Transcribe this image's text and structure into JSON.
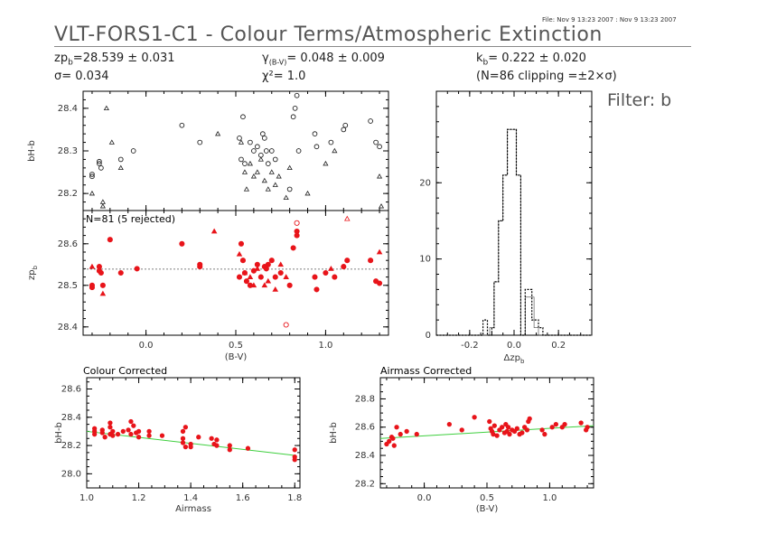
{
  "header": {
    "file_stamp": "File: Nov  9 13:23 2007 : Nov  9 13:23 2007",
    "title": "VLT-FORS1-C1 - Colour Terms/Atmospheric Extinction",
    "zp_line": "zpₐ=28.539 ± 0.031",
    "zp_text": "zp",
    "zp_sub": "b",
    "zp_val": "=28.539 ± 0.031",
    "sigma_line": "σ=  0.034",
    "gamma_sym": "γ",
    "gamma_sub": "(B-V)",
    "gamma_val": "=  0.048 ± 0.009",
    "chi_line": "χ²=   1.0",
    "k_text": "k",
    "k_sub": "b",
    "k_val": "=  0.222 ± 0.020",
    "n_line": "(N=86 clipping =±2×σ)",
    "filter": "Filter: b"
  },
  "chart_data": [
    {
      "id": "colour-top",
      "type": "scatter",
      "ylabel": "bH-b",
      "xlim": [
        -0.35,
        1.35
      ],
      "ylim": [
        28.16,
        28.44
      ],
      "yticks": [
        28.2,
        28.3,
        28.4
      ],
      "points_circle": [
        [
          -0.3,
          28.24
        ],
        [
          -0.3,
          28.245
        ],
        [
          -0.26,
          28.27
        ],
        [
          -0.26,
          28.275
        ],
        [
          -0.25,
          28.26
        ],
        [
          -0.14,
          28.28
        ],
        [
          -0.07,
          28.3
        ],
        [
          0.2,
          28.36
        ],
        [
          0.3,
          28.32
        ],
        [
          0.52,
          28.33
        ],
        [
          0.53,
          28.28
        ],
        [
          0.54,
          28.38
        ],
        [
          0.55,
          28.27
        ],
        [
          0.58,
          28.32
        ],
        [
          0.6,
          28.3
        ],
        [
          0.62,
          28.31
        ],
        [
          0.64,
          28.29
        ],
        [
          0.65,
          28.34
        ],
        [
          0.66,
          28.33
        ],
        [
          0.67,
          28.3
        ],
        [
          0.68,
          28.27
        ],
        [
          0.7,
          28.3
        ],
        [
          0.72,
          28.28
        ],
        [
          0.8,
          28.21
        ],
        [
          0.82,
          28.38
        ],
        [
          0.83,
          28.4
        ],
        [
          0.84,
          28.43
        ],
        [
          0.85,
          28.3
        ],
        [
          0.94,
          28.34
        ],
        [
          0.95,
          28.31
        ],
        [
          1.03,
          28.32
        ],
        [
          1.1,
          28.35
        ],
        [
          1.11,
          28.36
        ],
        [
          1.25,
          28.37
        ],
        [
          1.28,
          28.32
        ],
        [
          1.3,
          28.31
        ]
      ],
      "points_triangle": [
        [
          -0.3,
          28.2
        ],
        [
          -0.24,
          28.18
        ],
        [
          -0.24,
          28.17
        ],
        [
          -0.22,
          28.4
        ],
        [
          -0.19,
          28.32
        ],
        [
          -0.14,
          28.26
        ],
        [
          0.4,
          28.34
        ],
        [
          0.53,
          28.32
        ],
        [
          0.55,
          28.25
        ],
        [
          0.56,
          28.21
        ],
        [
          0.58,
          28.27
        ],
        [
          0.6,
          28.24
        ],
        [
          0.62,
          28.25
        ],
        [
          0.64,
          28.28
        ],
        [
          0.66,
          28.23
        ],
        [
          0.68,
          28.21
        ],
        [
          0.7,
          28.25
        ],
        [
          0.72,
          28.22
        ],
        [
          0.74,
          28.24
        ],
        [
          0.78,
          28.19
        ],
        [
          0.8,
          28.26
        ],
        [
          0.9,
          28.2
        ],
        [
          1.0,
          28.27
        ],
        [
          1.05,
          28.3
        ],
        [
          1.3,
          28.24
        ],
        [
          1.31,
          28.17
        ]
      ]
    },
    {
      "id": "zp-middle",
      "type": "scatter",
      "ylabel": "zp_b",
      "xlabel": "(B-V)",
      "annotation": "N=81 (5 rejected)",
      "xlim": [
        -0.35,
        1.35
      ],
      "ylim": [
        28.38,
        28.68
      ],
      "yticks": [
        28.4,
        28.5,
        28.6
      ],
      "xticks": [
        0.0,
        0.5,
        1.0
      ],
      "fit_y": 28.539,
      "points": [
        [
          -0.3,
          28.495
        ],
        [
          -0.3,
          28.5
        ],
        [
          -0.26,
          28.535
        ],
        [
          -0.26,
          28.545
        ],
        [
          -0.25,
          28.53
        ],
        [
          -0.24,
          28.5
        ],
        [
          -0.2,
          28.61
        ],
        [
          -0.14,
          28.53
        ],
        [
          -0.05,
          28.54
        ],
        [
          0.2,
          28.6
        ],
        [
          0.3,
          28.55
        ],
        [
          0.3,
          28.545
        ],
        [
          0.52,
          28.52
        ],
        [
          0.53,
          28.6
        ],
        [
          0.54,
          28.56
        ],
        [
          0.55,
          28.53
        ],
        [
          0.56,
          28.51
        ],
        [
          0.58,
          28.5
        ],
        [
          0.6,
          28.535
        ],
        [
          0.62,
          28.55
        ],
        [
          0.64,
          28.52
        ],
        [
          0.66,
          28.545
        ],
        [
          0.67,
          28.54
        ],
        [
          0.68,
          28.55
        ],
        [
          0.7,
          28.56
        ],
        [
          0.72,
          28.52
        ],
        [
          0.75,
          28.53
        ],
        [
          0.8,
          28.5
        ],
        [
          0.82,
          28.59
        ],
        [
          0.84,
          28.62
        ],
        [
          0.84,
          28.63
        ],
        [
          0.94,
          28.52
        ],
        [
          0.95,
          28.49
        ],
        [
          1.0,
          28.53
        ],
        [
          1.05,
          28.52
        ],
        [
          1.1,
          28.545
        ],
        [
          1.12,
          28.56
        ],
        [
          1.25,
          28.56
        ],
        [
          1.28,
          28.51
        ],
        [
          1.3,
          28.505
        ]
      ],
      "triangles": [
        [
          -0.3,
          28.545
        ],
        [
          -0.24,
          28.48
        ],
        [
          0.38,
          28.63
        ],
        [
          0.52,
          28.575
        ],
        [
          0.55,
          28.53
        ],
        [
          0.58,
          28.52
        ],
        [
          0.6,
          28.5
        ],
        [
          0.62,
          28.54
        ],
        [
          0.66,
          28.5
        ],
        [
          0.68,
          28.51
        ],
        [
          0.72,
          28.49
        ],
        [
          0.75,
          28.55
        ],
        [
          0.78,
          28.52
        ],
        [
          1.03,
          28.54
        ],
        [
          1.3,
          28.58
        ]
      ],
      "rejected_circle": [
        [
          0.78,
          28.405
        ],
        [
          0.84,
          28.65
        ]
      ],
      "rejected_triangle": [
        [
          1.12,
          28.66
        ]
      ]
    },
    {
      "id": "histogram",
      "type": "bar",
      "xlabel": "Δzp_b",
      "xlim": [
        -0.35,
        0.35
      ],
      "ylim": [
        0,
        32
      ],
      "yticks": [
        0,
        10,
        20
      ],
      "xticks": [
        -0.2,
        0.0,
        0.2
      ],
      "bins_solid": [
        [
          -0.35,
          0
        ],
        [
          -0.12,
          0
        ],
        [
          -0.11,
          1
        ],
        [
          -0.09,
          7
        ],
        [
          -0.07,
          15
        ],
        [
          -0.05,
          21
        ],
        [
          -0.03,
          27
        ],
        [
          -0.01,
          27
        ],
        [
          0.01,
          21
        ],
        [
          0.03,
          0
        ],
        [
          0.05,
          5
        ],
        [
          0.07,
          5
        ],
        [
          0.09,
          1
        ],
        [
          0.11,
          0
        ],
        [
          0.35,
          0
        ]
      ],
      "bins_dotted": [
        [
          -0.35,
          0
        ],
        [
          -0.14,
          0
        ],
        [
          -0.14,
          2
        ],
        [
          -0.12,
          2
        ],
        [
          -0.12,
          0
        ],
        [
          -0.1,
          0
        ],
        [
          -0.1,
          1
        ],
        [
          -0.09,
          1
        ],
        [
          -0.09,
          7
        ],
        [
          -0.07,
          7
        ],
        [
          -0.07,
          15
        ],
        [
          -0.05,
          15
        ],
        [
          -0.05,
          21
        ],
        [
          -0.03,
          21
        ],
        [
          -0.03,
          27
        ],
        [
          0.01,
          27
        ],
        [
          0.01,
          21
        ],
        [
          0.03,
          21
        ],
        [
          0.03,
          0
        ],
        [
          0.05,
          0
        ],
        [
          0.05,
          6
        ],
        [
          0.08,
          6
        ],
        [
          0.08,
          2
        ],
        [
          0.11,
          2
        ],
        [
          0.11,
          1
        ],
        [
          0.13,
          1
        ],
        [
          0.13,
          0
        ],
        [
          0.35,
          0
        ]
      ]
    },
    {
      "id": "colour-corrected",
      "type": "scatter",
      "title": "Colour Corrected",
      "xlabel": "Airmass",
      "ylabel": "bH-b",
      "xlim": [
        1.0,
        1.82
      ],
      "ylim": [
        27.9,
        28.68
      ],
      "xticks": [
        1.0,
        1.2,
        1.4,
        1.6,
        1.8
      ],
      "yticks": [
        28.0,
        28.2,
        28.4,
        28.6
      ],
      "fit_line": [
        [
          1.0,
          28.3
        ],
        [
          1.8,
          28.13
        ]
      ],
      "points": [
        [
          1.03,
          28.3
        ],
        [
          1.03,
          28.28
        ],
        [
          1.03,
          28.32
        ],
        [
          1.06,
          28.29
        ],
        [
          1.06,
          28.31
        ],
        [
          1.07,
          28.26
        ],
        [
          1.09,
          28.28
        ],
        [
          1.09,
          28.33
        ],
        [
          1.09,
          28.36
        ],
        [
          1.1,
          28.3
        ],
        [
          1.1,
          28.27
        ],
        [
          1.12,
          28.28
        ],
        [
          1.14,
          28.3
        ],
        [
          1.16,
          28.31
        ],
        [
          1.17,
          28.28
        ],
        [
          1.17,
          28.37
        ],
        [
          1.18,
          28.34
        ],
        [
          1.19,
          28.29
        ],
        [
          1.2,
          28.3
        ],
        [
          1.2,
          28.26
        ],
        [
          1.24,
          28.27
        ],
        [
          1.24,
          28.3
        ],
        [
          1.29,
          28.27
        ],
        [
          1.37,
          28.3
        ],
        [
          1.37,
          28.25
        ],
        [
          1.37,
          28.22
        ],
        [
          1.38,
          28.19
        ],
        [
          1.38,
          28.33
        ],
        [
          1.4,
          28.21
        ],
        [
          1.4,
          28.19
        ],
        [
          1.43,
          28.26
        ],
        [
          1.48,
          28.25
        ],
        [
          1.49,
          28.21
        ],
        [
          1.5,
          28.24
        ],
        [
          1.5,
          28.2
        ],
        [
          1.55,
          28.2
        ],
        [
          1.55,
          28.17
        ],
        [
          1.62,
          28.18
        ],
        [
          1.8,
          28.17
        ],
        [
          1.8,
          28.12
        ],
        [
          1.8,
          28.1
        ]
      ]
    },
    {
      "id": "airmass-corrected",
      "type": "scatter",
      "title": "Airmass Corrected",
      "xlabel": "(B-V)",
      "ylabel": "bH-b",
      "xlim": [
        -0.35,
        1.35
      ],
      "ylim": [
        28.17,
        28.95
      ],
      "xticks": [
        0.0,
        0.5,
        1.0
      ],
      "yticks": [
        28.2,
        28.4,
        28.6,
        28.8
      ],
      "fit_line": [
        [
          -0.35,
          28.52
        ],
        [
          1.35,
          28.61
        ]
      ],
      "points": [
        [
          -0.3,
          28.48
        ],
        [
          -0.28,
          28.5
        ],
        [
          -0.26,
          28.53
        ],
        [
          -0.25,
          28.52
        ],
        [
          -0.24,
          28.47
        ],
        [
          -0.22,
          28.6
        ],
        [
          -0.19,
          28.55
        ],
        [
          -0.14,
          28.57
        ],
        [
          -0.06,
          28.55
        ],
        [
          0.2,
          28.62
        ],
        [
          0.3,
          28.58
        ],
        [
          0.4,
          28.67
        ],
        [
          0.52,
          28.64
        ],
        [
          0.53,
          28.59
        ],
        [
          0.54,
          28.57
        ],
        [
          0.55,
          28.55
        ],
        [
          0.56,
          28.61
        ],
        [
          0.58,
          28.54
        ],
        [
          0.6,
          28.58
        ],
        [
          0.62,
          28.6
        ],
        [
          0.64,
          28.56
        ],
        [
          0.65,
          28.62
        ],
        [
          0.66,
          28.57
        ],
        [
          0.67,
          28.6
        ],
        [
          0.68,
          28.55
        ],
        [
          0.7,
          28.58
        ],
        [
          0.72,
          28.57
        ],
        [
          0.74,
          28.59
        ],
        [
          0.76,
          28.55
        ],
        [
          0.78,
          28.56
        ],
        [
          0.8,
          28.6
        ],
        [
          0.82,
          28.58
        ],
        [
          0.83,
          28.64
        ],
        [
          0.84,
          28.66
        ],
        [
          0.94,
          28.58
        ],
        [
          0.96,
          28.55
        ],
        [
          1.02,
          28.6
        ],
        [
          1.05,
          28.62
        ],
        [
          1.1,
          28.6
        ],
        [
          1.12,
          28.62
        ],
        [
          1.25,
          28.63
        ],
        [
          1.29,
          28.58
        ],
        [
          1.3,
          28.6
        ]
      ]
    }
  ]
}
